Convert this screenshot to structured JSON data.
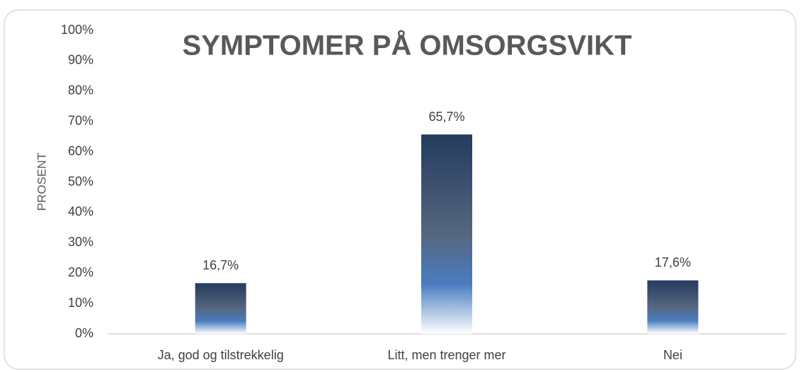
{
  "chart_data": {
    "type": "bar",
    "title": "SYMPTOMER PÅ OMSORGSVIKT",
    "y_label": "PROSENT",
    "categories": [
      "Ja, god og tilstrekkelig",
      "Litt, men trenger mer",
      "Nei"
    ],
    "values": [
      16.7,
      65.7,
      17.6
    ],
    "value_labels": [
      "16,7%",
      "65,7%",
      "17,6%"
    ],
    "color": "#243b5e",
    "ylim": [
      0,
      100
    ],
    "yticks": [
      {
        "value": 0,
        "label": "0%"
      },
      {
        "value": 10,
        "label": "10%"
      },
      {
        "value": 20,
        "label": "20%"
      },
      {
        "value": 30,
        "label": "30%"
      },
      {
        "value": 40,
        "label": "40%"
      },
      {
        "value": 50,
        "label": "50%"
      },
      {
        "value": 60,
        "label": "60%"
      },
      {
        "value": 70,
        "label": "70%"
      },
      {
        "value": 80,
        "label": "80%"
      },
      {
        "value": 90,
        "label": "90%"
      },
      {
        "value": 100,
        "label": "100%"
      }
    ],
    "grid": false
  }
}
